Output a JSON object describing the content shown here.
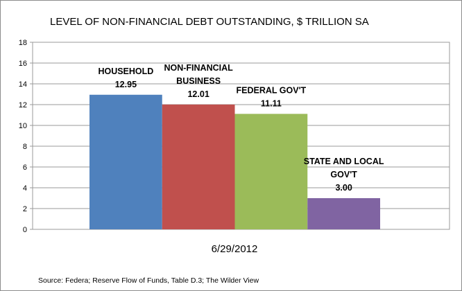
{
  "chart_data": {
    "type": "bar",
    "title": "LEVEL OF NON-FINANCIAL DEBT OUTSTANDING, $ TRILLION SA",
    "xlabel": "6/29/2012",
    "ylabel": "",
    "ylim": [
      0,
      18
    ],
    "yticks": [
      "0",
      "2",
      "4",
      "6",
      "8",
      "10",
      "12",
      "14",
      "16",
      "18"
    ],
    "grid": true,
    "legend": "none",
    "categories": [
      "6/29/2012"
    ],
    "series": [
      {
        "label_lines": [
          "HOUSEHOLD"
        ],
        "value": 12.95,
        "value_label": "12.95",
        "color": "#4f81bd"
      },
      {
        "label_lines": [
          "NON-FINANCIAL",
          "BUSINESS"
        ],
        "value": 12.01,
        "value_label": "12.01",
        "color": "#c0504d"
      },
      {
        "label_lines": [
          "FEDERAL GOV'T"
        ],
        "value": 11.11,
        "value_label": "11.11",
        "color": "#9bbb59"
      },
      {
        "label_lines": [
          "STATE AND LOCAL",
          "GOV'T"
        ],
        "value": 3.0,
        "value_label": "3.00",
        "color": "#8064a2"
      }
    ],
    "source": "Source: Federa; Reserve Flow of Funds, Table D.3; The Wilder View"
  }
}
